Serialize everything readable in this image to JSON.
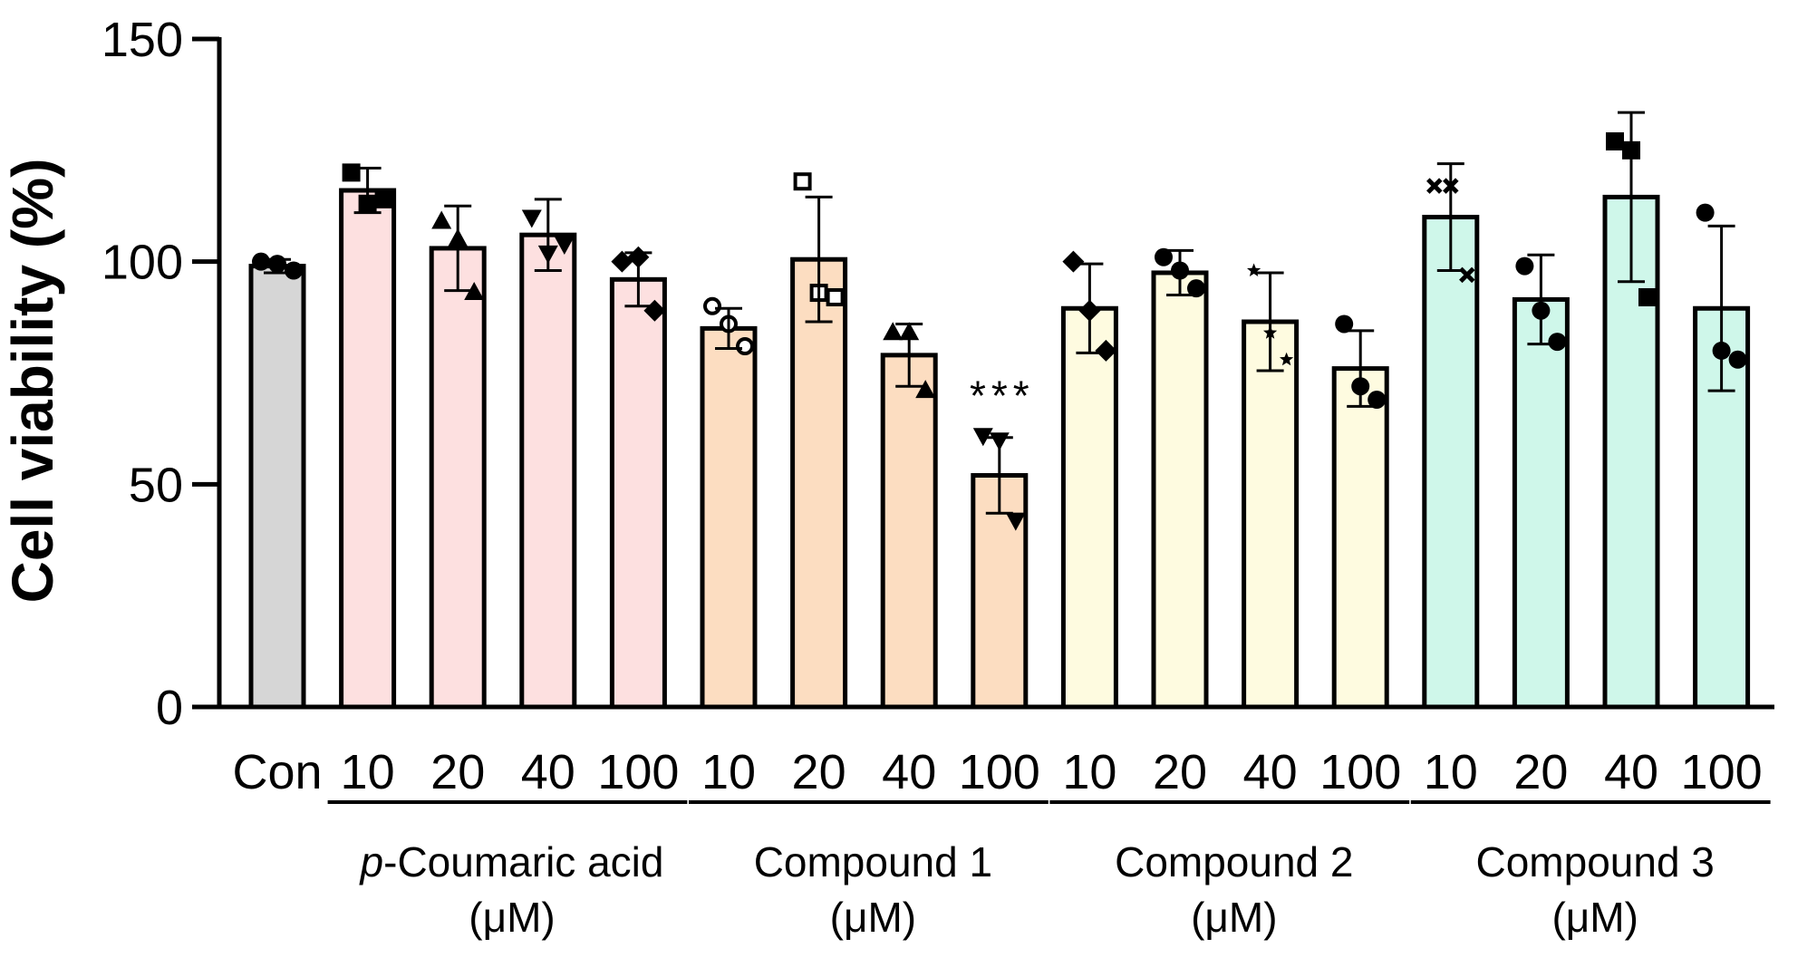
{
  "chart_data": {
    "type": "bar",
    "ylabel": "Cell viability (%)",
    "ylim": [
      0,
      150
    ],
    "yticks": [
      0,
      50,
      100,
      150
    ],
    "grid": false,
    "categories": [
      "Con",
      "10",
      "20",
      "40",
      "100",
      "10",
      "20",
      "40",
      "100",
      "10",
      "20",
      "40",
      "100",
      "10",
      "20",
      "40",
      "100"
    ],
    "values": [
      99,
      116,
      103,
      106,
      96,
      85,
      100.5,
      79,
      52,
      89.5,
      97.5,
      86.5,
      76,
      110,
      91.5,
      114.5,
      89.5
    ],
    "errors": [
      1.5,
      5,
      9.5,
      8,
      6,
      4.5,
      14,
      7,
      8.5,
      10,
      5,
      11,
      8.5,
      12,
      10,
      19,
      18.5
    ],
    "points": [
      [
        100,
        99.5,
        98
      ],
      [
        120,
        113,
        114
      ],
      [
        109,
        105,
        93
      ],
      [
        110,
        102,
        104
      ],
      [
        100,
        101,
        89
      ],
      [
        90,
        86,
        81
      ],
      [
        118,
        93,
        92
      ],
      [
        84,
        84,
        71
      ],
      [
        61,
        60,
        42
      ],
      [
        100,
        89,
        80
      ],
      [
        101,
        98,
        94
      ],
      [
        98,
        84,
        78
      ],
      [
        86,
        72,
        69
      ],
      [
        117,
        117,
        97
      ],
      [
        99,
        89,
        82
      ],
      [
        127,
        125,
        92
      ],
      [
        111,
        80,
        78
      ]
    ],
    "groups": [
      {
        "label_prefix": "p",
        "label_rest": "-Coumaric acid",
        "unit": "(μM)",
        "indices": [
          1,
          2,
          3,
          4
        ]
      },
      {
        "label_prefix": "",
        "label_rest": "Compound 1",
        "unit": "(μM)",
        "indices": [
          5,
          6,
          7,
          8
        ]
      },
      {
        "label_prefix": "",
        "label_rest": "Compound 2",
        "unit": "(μM)",
        "indices": [
          9,
          10,
          11,
          12
        ]
      },
      {
        "label_prefix": "",
        "label_rest": "Compound 3",
        "unit": "(μM)",
        "indices": [
          13,
          14,
          15,
          16
        ]
      }
    ],
    "annotations": [
      {
        "index": 8,
        "text": "***"
      }
    ],
    "colors": {
      "control": "#d6d6d6",
      "p_coumaric": "#fde0e0",
      "compound1": "#fcddc1",
      "compound2": "#fefbe0",
      "compound3": "#cff7ea"
    },
    "bar_colors": [
      "control",
      "p_coumaric",
      "p_coumaric",
      "p_coumaric",
      "p_coumaric",
      "compound1",
      "compound1",
      "compound1",
      "compound1",
      "compound2",
      "compound2",
      "compound2",
      "compound2",
      "compound3",
      "compound3",
      "compound3",
      "compound3"
    ],
    "markers": [
      "circle",
      "square",
      "triangle",
      "triangle-down",
      "diamond",
      "circle-open",
      "square-open",
      "triangle",
      "triangle-down",
      "diamond",
      "circle",
      "star",
      "circle",
      "cross",
      "circle",
      "square",
      "circle"
    ]
  }
}
